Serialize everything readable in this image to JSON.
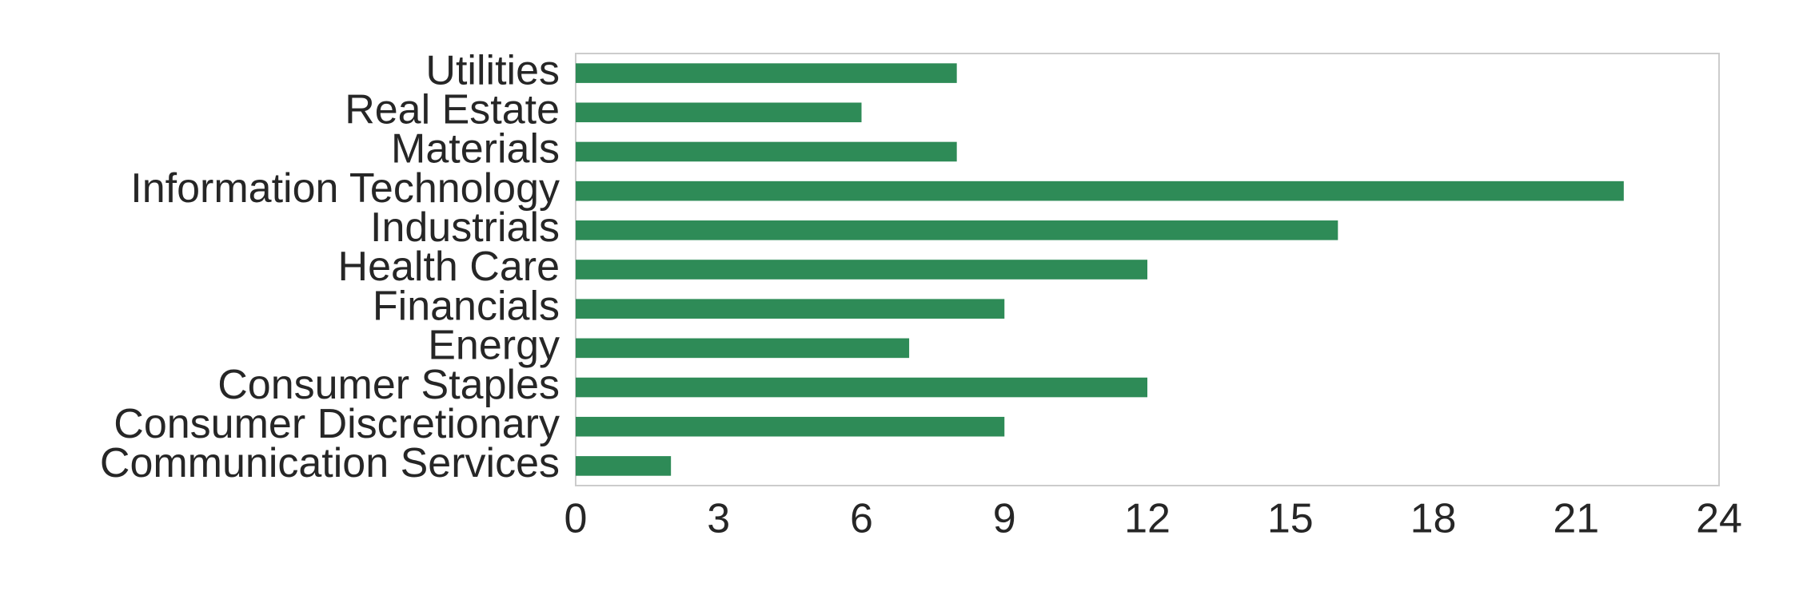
{
  "chart_data": {
    "type": "barh",
    "categories": [
      "Communication Services",
      "Consumer Discretionary",
      "Consumer Staples",
      "Energy",
      "Financials",
      "Health Care",
      "Industrials",
      "Information Technology",
      "Materials",
      "Real Estate",
      "Utilities"
    ],
    "values": [
      2,
      9,
      12,
      7,
      9,
      12,
      16,
      22,
      8,
      6,
      8
    ],
    "color": "#2e8b57",
    "xlim": [
      0,
      24
    ],
    "xticks": [
      0,
      3,
      6,
      9,
      12,
      15,
      18,
      21,
      24
    ],
    "grid": false
  }
}
